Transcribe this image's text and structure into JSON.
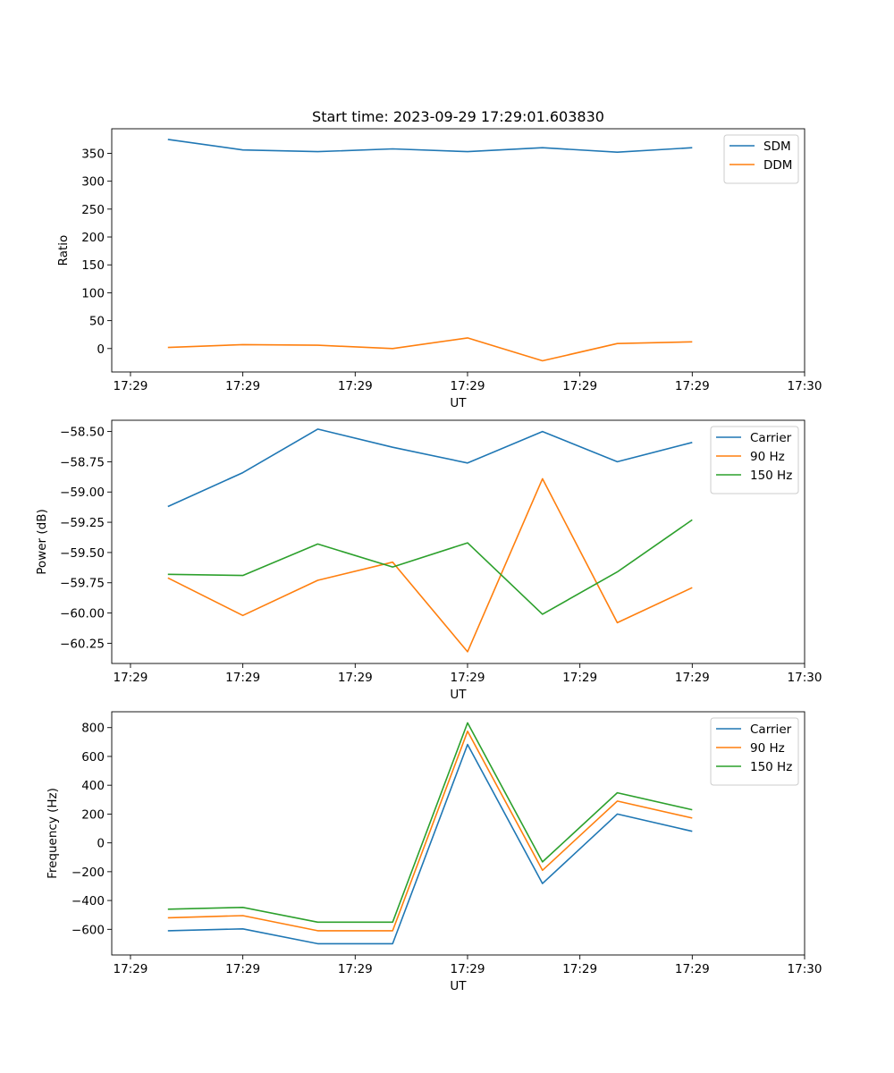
{
  "colors": {
    "blue": "#1f77b4",
    "orange": "#ff7f0e",
    "green": "#2ca02c"
  },
  "chart_data": [
    {
      "type": "line",
      "title": "Start time: 2023-09-29 17:29:01.603830",
      "xlabel": "UT",
      "ylabel": "Ratio",
      "x": [
        0.5,
        1.5,
        2.5,
        3.5,
        4.5,
        5.5,
        6.5,
        7.5
      ],
      "xlim": [
        -0.25,
        9
      ],
      "xticks": [
        0,
        1.5,
        3,
        4.5,
        6,
        7.5,
        9
      ],
      "xticklabels": [
        "17:29",
        "17:29",
        "17:29",
        "17:29",
        "17:29",
        "17:29",
        "17:30"
      ],
      "ylim": [
        -42,
        394
      ],
      "yticks": [
        0,
        50,
        100,
        150,
        200,
        250,
        300,
        350
      ],
      "yticklabels": [
        "0",
        "50",
        "100",
        "150",
        "200",
        "250",
        "300",
        "350"
      ],
      "legend": "top-right",
      "series": [
        {
          "name": "SDM",
          "color": "#1f77b4",
          "values": [
            375,
            356,
            353,
            358,
            353,
            360,
            352,
            360
          ]
        },
        {
          "name": "DDM",
          "color": "#ff7f0e",
          "values": [
            2,
            7,
            6,
            0,
            19,
            -22,
            9,
            12
          ]
        }
      ]
    },
    {
      "type": "line",
      "title": "",
      "xlabel": "UT",
      "ylabel": "Power (dB)",
      "x": [
        0.5,
        1.5,
        2.5,
        3.5,
        4.5,
        5.5,
        6.5,
        7.5
      ],
      "xlim": [
        -0.25,
        9
      ],
      "xticks": [
        0,
        1.5,
        3,
        4.5,
        6,
        7.5,
        9
      ],
      "xticklabels": [
        "17:29",
        "17:29",
        "17:29",
        "17:29",
        "17:29",
        "17:29",
        "17:30"
      ],
      "ylim": [
        -60.417,
        -58.407
      ],
      "yticks": [
        -60.25,
        -60.0,
        -59.75,
        -59.5,
        -59.25,
        -59.0,
        -58.75,
        -58.5
      ],
      "yticklabels": [
        "−60.25",
        "−60.00",
        "−59.75",
        "−59.50",
        "−59.25",
        "−59.00",
        "−58.75",
        "−58.50"
      ],
      "legend": "top-right",
      "series": [
        {
          "name": "Carrier",
          "color": "#1f77b4",
          "values": [
            -59.12,
            -58.84,
            -58.48,
            -58.63,
            -58.76,
            -58.5,
            -58.75,
            -58.59
          ]
        },
        {
          "name": "90 Hz",
          "color": "#ff7f0e",
          "values": [
            -59.71,
            -60.02,
            -59.73,
            -59.58,
            -60.32,
            -58.89,
            -60.08,
            -59.79
          ]
        },
        {
          "name": "150 Hz",
          "color": "#2ca02c",
          "values": [
            -59.68,
            -59.69,
            -59.43,
            -59.62,
            -59.42,
            -60.01,
            -59.66,
            -59.23
          ]
        }
      ]
    },
    {
      "type": "line",
      "title": "",
      "xlabel": "UT",
      "ylabel": "Frequency (Hz)",
      "x": [
        0.5,
        1.5,
        2.5,
        3.5,
        4.5,
        5.5,
        6.5,
        7.5
      ],
      "xlim": [
        -0.25,
        9
      ],
      "xticks": [
        0,
        1.5,
        3,
        4.5,
        6,
        7.5,
        9
      ],
      "xticklabels": [
        "17:29",
        "17:29",
        "17:29",
        "17:29",
        "17:29",
        "17:29",
        "17:30"
      ],
      "ylim": [
        -778,
        910
      ],
      "yticks": [
        -600,
        -400,
        -200,
        0,
        200,
        400,
        600,
        800
      ],
      "yticklabels": [
        "−600",
        "−400",
        "−200",
        "0",
        "200",
        "400",
        "600",
        "800"
      ],
      "legend": "top-right",
      "series": [
        {
          "name": "Carrier",
          "color": "#1f77b4",
          "values": [
            -610,
            -597,
            -700,
            -700,
            683,
            -282,
            200,
            80
          ]
        },
        {
          "name": "90 Hz",
          "color": "#ff7f0e",
          "values": [
            -520,
            -505,
            -610,
            -610,
            775,
            -190,
            290,
            172
          ]
        },
        {
          "name": "150 Hz",
          "color": "#2ca02c",
          "values": [
            -460,
            -448,
            -550,
            -550,
            833,
            -132,
            348,
            230
          ]
        }
      ]
    }
  ]
}
